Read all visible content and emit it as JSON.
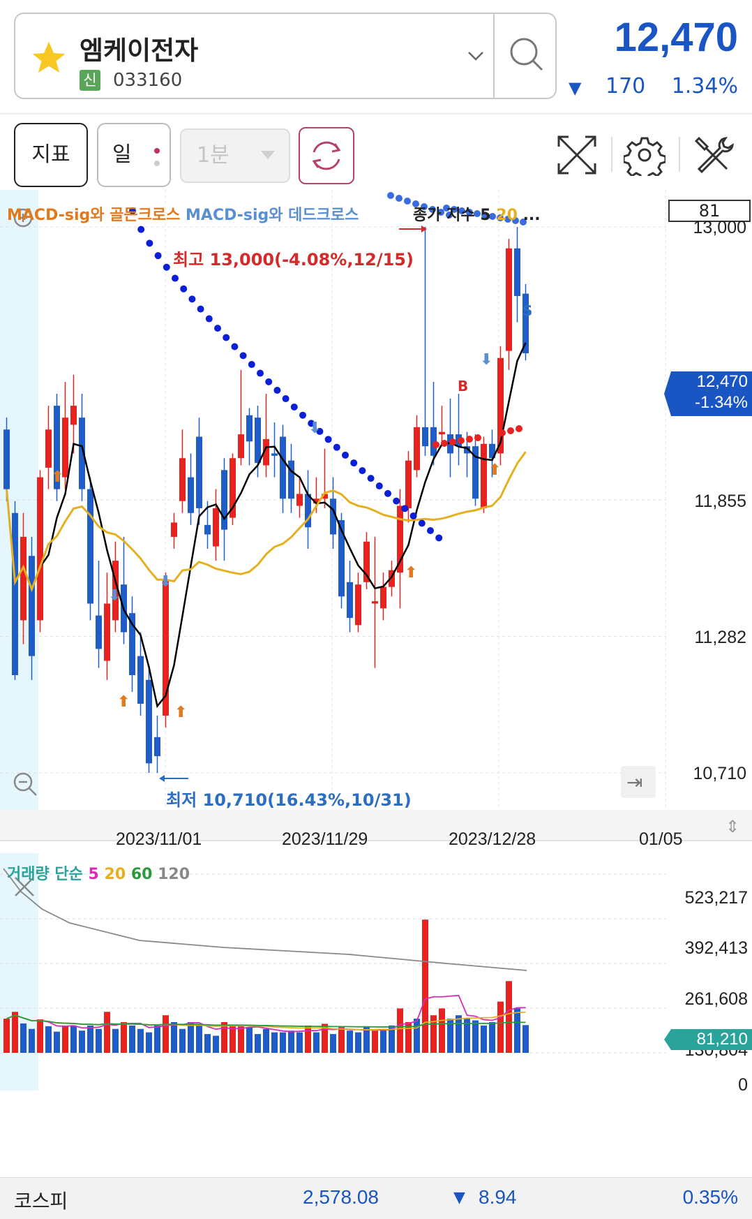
{
  "header": {
    "stock_name": "엠케이전자",
    "credit_badge": "신",
    "stock_code": "033160",
    "price": "12,470",
    "change_arrow": "▼",
    "change_value": "170",
    "change_pct": "1.34%",
    "icons": [
      "star-icon",
      "chevron-down-icon",
      "search-icon"
    ]
  },
  "toolbar": {
    "indicator_label": "지표",
    "period_label": "일",
    "minute_label": "1분",
    "icons": [
      "refresh-icon",
      "fullscreen-icon",
      "gear-icon",
      "tools-icon"
    ]
  },
  "chart": {
    "legend_golden": "MACD-sig와 골든크로스",
    "legend_dead": "MACD-sig와 데드크로스",
    "legend_close_prefix": "종가 지수 5",
    "legend_close_20": "20",
    "legend_close_more": "...",
    "indicator_box": "81",
    "high_label": "최고 13,000(-4.08%,12/15)",
    "low_label": "최저 10,710(16.43%,10/31)",
    "price_axis": [
      "13,000",
      "11,855",
      "11,282",
      "10,710"
    ],
    "current_price_tag": "12,470",
    "current_change_tag": "-1.34%",
    "dates": [
      "2023/11/01",
      "2023/11/29",
      "2023/12/28",
      "01/05"
    ],
    "signal_buy": "B",
    "signal_sell": "S",
    "colors": {
      "up": "#e8231f",
      "down": "#1f5cc7",
      "ma5": "#000000",
      "ma20": "#e5b020"
    }
  },
  "volume": {
    "legend_prefix": "거래량 단순",
    "legend_5": "5",
    "legend_20": "20",
    "legend_60": "60",
    "legend_120": "120",
    "axis": [
      "523,217",
      "392,413",
      "261,608",
      "130,804",
      "0"
    ],
    "current_tag": "81,210"
  },
  "footer": {
    "index_name": "코스피",
    "index_value": "2,578.08",
    "index_arrow": "▼",
    "index_change": "8.94",
    "index_pct": "0.35%"
  },
  "chart_data": {
    "type": "candlestick",
    "ylim": [
      10710,
      13000
    ],
    "x_ticks": [
      "2023/11/01",
      "2023/11/29",
      "2023/12/28",
      "01/05"
    ],
    "candles": [
      {
        "o": 12150,
        "c": 11900,
        "h": 12200,
        "l": 11850
      },
      {
        "o": 11800,
        "c": 11120,
        "h": 11850,
        "l": 11100
      },
      {
        "o": 11350,
        "c": 11700,
        "h": 11800,
        "l": 11250
      },
      {
        "o": 11620,
        "c": 11200,
        "h": 11700,
        "l": 11100
      },
      {
        "o": 11350,
        "c": 11950,
        "h": 11980,
        "l": 11300
      },
      {
        "o": 11990,
        "c": 12150,
        "h": 12250,
        "l": 11900
      },
      {
        "o": 12250,
        "c": 11900,
        "h": 12300,
        "l": 11850
      },
      {
        "o": 11950,
        "c": 12200,
        "h": 12350,
        "l": 11900
      },
      {
        "o": 12170,
        "c": 12250,
        "h": 12380,
        "l": 12050
      },
      {
        "o": 12200,
        "c": 11900,
        "h": 12300,
        "l": 11850
      },
      {
        "o": 11900,
        "c": 11420,
        "h": 11950,
        "l": 11350
      },
      {
        "o": 11370,
        "c": 11230,
        "h": 11600,
        "l": 11150
      },
      {
        "o": 11180,
        "c": 11420,
        "h": 11550,
        "l": 11100
      },
      {
        "o": 11350,
        "c": 11600,
        "h": 11680,
        "l": 11300
      },
      {
        "o": 11500,
        "c": 11300,
        "h": 11700,
        "l": 11250
      },
      {
        "o": 11380,
        "c": 11120,
        "h": 11450,
        "l": 11050
      },
      {
        "o": 11200,
        "c": 11000,
        "h": 11300,
        "l": 10950
      },
      {
        "o": 11100,
        "c": 10750,
        "h": 11150,
        "l": 10710
      },
      {
        "o": 10860,
        "c": 10780,
        "h": 10950,
        "l": 10710
      },
      {
        "o": 10950,
        "c": 11520,
        "h": 11550,
        "l": 10900
      },
      {
        "o": 11700,
        "c": 11760,
        "h": 11800,
        "l": 11650
      },
      {
        "o": 11850,
        "c": 12030,
        "h": 12150,
        "l": 11800
      },
      {
        "o": 11950,
        "c": 11800,
        "h": 12050,
        "l": 11750
      },
      {
        "o": 12120,
        "c": 11820,
        "h": 12200,
        "l": 11750
      },
      {
        "o": 11750,
        "c": 11710,
        "h": 11850,
        "l": 11650
      },
      {
        "o": 11660,
        "c": 11820,
        "h": 11900,
        "l": 11600
      },
      {
        "o": 11980,
        "c": 11730,
        "h": 12030,
        "l": 11600
      },
      {
        "o": 11780,
        "c": 12030,
        "h": 12050,
        "l": 11750
      },
      {
        "o": 12030,
        "c": 12130,
        "h": 12400,
        "l": 12000
      },
      {
        "o": 12210,
        "c": 12100,
        "h": 12240,
        "l": 12000
      },
      {
        "o": 12200,
        "c": 12010,
        "h": 12250,
        "l": 11950
      },
      {
        "o": 12000,
        "c": 12110,
        "h": 12300,
        "l": 11950
      },
      {
        "o": 12050,
        "c": 12040,
        "h": 12180,
        "l": 11950
      },
      {
        "o": 12120,
        "c": 11860,
        "h": 12170,
        "l": 11800
      },
      {
        "o": 12020,
        "c": 11860,
        "h": 12090,
        "l": 11800
      },
      {
        "o": 11830,
        "c": 11880,
        "h": 11950,
        "l": 11780
      },
      {
        "o": 11880,
        "c": 11740,
        "h": 11980,
        "l": 11650
      },
      {
        "o": 11840,
        "c": 11860,
        "h": 11950,
        "l": 11800
      },
      {
        "o": 11860,
        "c": 11880,
        "h": 12070,
        "l": 11820
      },
      {
        "o": 11860,
        "c": 11710,
        "h": 11950,
        "l": 11650
      },
      {
        "o": 11770,
        "c": 11450,
        "h": 11800,
        "l": 11400
      },
      {
        "o": 11510,
        "c": 11360,
        "h": 11600,
        "l": 11300
      },
      {
        "o": 11330,
        "c": 11500,
        "h": 11550,
        "l": 11300
      },
      {
        "o": 11510,
        "c": 11680,
        "h": 11720,
        "l": 11480
      },
      {
        "o": 11420,
        "c": 11430,
        "h": 11700,
        "l": 11150
      },
      {
        "o": 11400,
        "c": 11490,
        "h": 11550,
        "l": 11350
      },
      {
        "o": 11490,
        "c": 11560,
        "h": 11600,
        "l": 11450
      },
      {
        "o": 11550,
        "c": 11830,
        "h": 11900,
        "l": 11400
      },
      {
        "o": 11820,
        "c": 12020,
        "h": 12060,
        "l": 11760
      },
      {
        "o": 11980,
        "c": 12160,
        "h": 12210,
        "l": 11950
      },
      {
        "o": 12160,
        "c": 12080,
        "h": 13000,
        "l": 12040
      },
      {
        "o": 12160,
        "c": 12040,
        "h": 12350,
        "l": 12000
      },
      {
        "o": 12130,
        "c": 12140,
        "h": 12250,
        "l": 12100
      },
      {
        "o": 12130,
        "c": 12050,
        "h": 12280,
        "l": 11950
      },
      {
        "o": 12130,
        "c": 12080,
        "h": 12300,
        "l": 12000
      },
      {
        "o": 12080,
        "c": 12050,
        "h": 12140,
        "l": 11950
      },
      {
        "o": 12080,
        "c": 11860,
        "h": 12130,
        "l": 11830
      },
      {
        "o": 11820,
        "c": 12090,
        "h": 12120,
        "l": 11800
      },
      {
        "o": 12090,
        "c": 12030,
        "h": 12150,
        "l": 11950
      },
      {
        "o": 12050,
        "c": 12450,
        "h": 12500,
        "l": 12000
      },
      {
        "o": 12480,
        "c": 12910,
        "h": 12950,
        "l": 12400
      },
      {
        "o": 12910,
        "c": 12710,
        "h": 13000,
        "l": 12600
      },
      {
        "o": 12720,
        "c": 12470,
        "h": 12760,
        "l": 12440
      }
    ],
    "volume_bars": [
      {
        "v": 100000,
        "up": true
      },
      {
        "v": 120000,
        "up": true
      },
      {
        "v": 86000,
        "up": false
      },
      {
        "v": 70000,
        "up": false
      },
      {
        "v": 98000,
        "up": true
      },
      {
        "v": 78000,
        "up": false
      },
      {
        "v": 62000,
        "up": false
      },
      {
        "v": 80000,
        "up": true
      },
      {
        "v": 80000,
        "up": false
      },
      {
        "v": 65000,
        "up": false
      },
      {
        "v": 80000,
        "up": false
      },
      {
        "v": 70000,
        "up": false
      },
      {
        "v": 120000,
        "up": true
      },
      {
        "v": 70000,
        "up": false
      },
      {
        "v": 90000,
        "up": true
      },
      {
        "v": 80000,
        "up": false
      },
      {
        "v": 70000,
        "up": false
      },
      {
        "v": 60000,
        "up": false
      },
      {
        "v": 80000,
        "up": false
      },
      {
        "v": 110000,
        "up": true
      },
      {
        "v": 90000,
        "up": false
      },
      {
        "v": 70000,
        "up": false
      },
      {
        "v": 90000,
        "up": false
      },
      {
        "v": 80000,
        "up": false
      },
      {
        "v": 55000,
        "up": false
      },
      {
        "v": 50000,
        "up": false
      },
      {
        "v": 90000,
        "up": true
      },
      {
        "v": 80000,
        "up": true
      },
      {
        "v": 80000,
        "up": true
      },
      {
        "v": 75000,
        "up": false
      },
      {
        "v": 55000,
        "up": false
      },
      {
        "v": 70000,
        "up": false
      },
      {
        "v": 60000,
        "up": false
      },
      {
        "v": 60000,
        "up": false
      },
      {
        "v": 65000,
        "up": false
      },
      {
        "v": 60000,
        "up": false
      },
      {
        "v": 80000,
        "up": true
      },
      {
        "v": 60000,
        "up": false
      },
      {
        "v": 85000,
        "up": true
      },
      {
        "v": 55000,
        "up": false
      },
      {
        "v": 75000,
        "up": true
      },
      {
        "v": 65000,
        "up": false
      },
      {
        "v": 60000,
        "up": false
      },
      {
        "v": 75000,
        "up": false
      },
      {
        "v": 65000,
        "up": true
      },
      {
        "v": 65000,
        "up": false
      },
      {
        "v": 80000,
        "up": false
      },
      {
        "v": 130000,
        "up": true
      },
      {
        "v": 90000,
        "up": true
      },
      {
        "v": 100000,
        "up": false
      },
      {
        "v": 390000,
        "up": true
      },
      {
        "v": 110000,
        "up": true
      },
      {
        "v": 130000,
        "up": true
      },
      {
        "v": 100000,
        "up": false
      },
      {
        "v": 110000,
        "up": false
      },
      {
        "v": 100000,
        "up": false
      },
      {
        "v": 95000,
        "up": false
      },
      {
        "v": 80000,
        "up": false
      },
      {
        "v": 90000,
        "up": false
      },
      {
        "v": 150000,
        "up": true
      },
      {
        "v": 210000,
        "up": true
      },
      {
        "v": 130000,
        "up": false
      },
      {
        "v": 81210,
        "up": false
      }
    ],
    "volume_ylim": [
      0,
      523217
    ]
  }
}
